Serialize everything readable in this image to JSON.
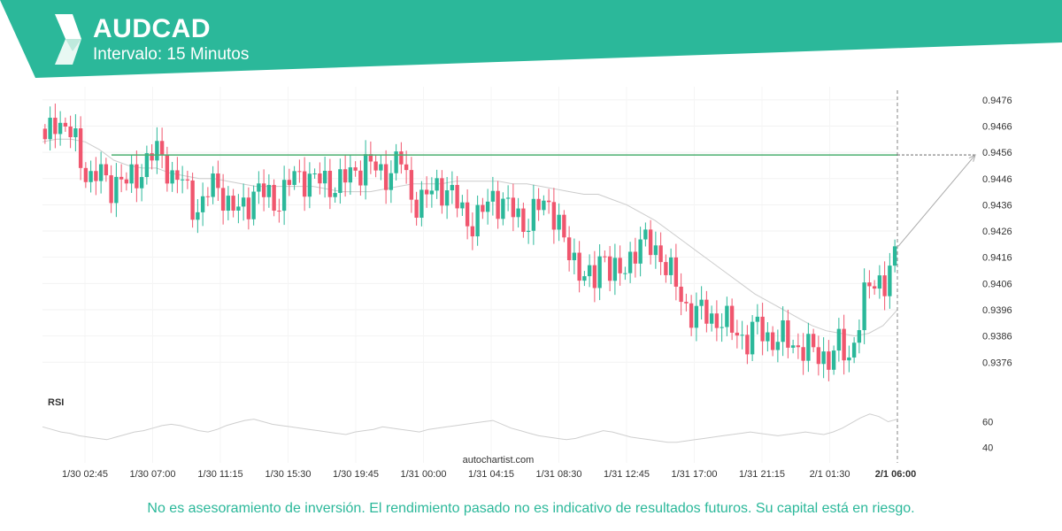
{
  "header": {
    "symbol": "AUDCAD",
    "interval": "Intervalo: 15 Minutos",
    "brand_color": "#2bb89a"
  },
  "indicator_label": "RSI",
  "watermark": "autochartist.com",
  "disclaimer": "No es asesoramiento de inversión. El rendimiento pasado no es indicativo de resultados futuros. Su capital está en riesgo.",
  "colors": {
    "up": "#2bb89a",
    "down": "#f0566e",
    "ma": "#cccccc",
    "level": "#4caf70"
  },
  "chart_data": {
    "type": "candlestick",
    "symbol": "AUDCAD",
    "price_ylim": [
      0.9369,
      0.9481
    ],
    "price_ticks": [
      "0.9476",
      "0.9466",
      "0.9456",
      "0.9446",
      "0.9436",
      "0.9426",
      "0.9416",
      "0.9406",
      "0.9396",
      "0.9386",
      "0.9376"
    ],
    "x_ticks": [
      "1/30 02:45",
      "1/30 07:00",
      "1/30 11:15",
      "1/30 15:30",
      "1/30 19:45",
      "1/31 00:00",
      "1/31 04:15",
      "1/31 08:30",
      "1/31 12:45",
      "1/31 17:00",
      "1/31 21:15",
      "2/1 01:30"
    ],
    "current_time_label": "2/1 06:00",
    "resistance_level": 0.9455,
    "forecast_target": 0.9455,
    "rsi_ylim": [
      30,
      70
    ],
    "rsi_ticks": [
      "60",
      "40"
    ],
    "close_path": [
      0.9458,
      0.947,
      0.9466,
      0.9462,
      0.9452,
      0.9446,
      0.9448,
      0.9443,
      0.9446,
      0.9444,
      0.9447,
      0.9452,
      0.9456,
      0.9454,
      0.9446,
      0.9445,
      0.9437,
      0.9434,
      0.9442,
      0.9444,
      0.9436,
      0.9433,
      0.9436,
      0.9442,
      0.944,
      0.9437,
      0.944,
      0.9446,
      0.9447,
      0.9446,
      0.9445,
      0.9444,
      0.9444,
      0.9446,
      0.9449,
      0.9452,
      0.945,
      0.9447,
      0.945,
      0.9453,
      0.944,
      0.9436,
      0.944,
      0.9444,
      0.9441,
      0.9437,
      0.9432,
      0.9428,
      0.9434,
      0.944,
      0.9436,
      0.9434,
      0.9431,
      0.9429,
      0.9435,
      0.9438,
      0.9431,
      0.9418,
      0.9415,
      0.941,
      0.9404,
      0.942,
      0.9411,
      0.9408,
      0.9416,
      0.9422,
      0.942,
      0.9419,
      0.9413,
      0.9405,
      0.9398,
      0.9394,
      0.9395,
      0.9393,
      0.9392,
      0.9389,
      0.9387,
      0.9384,
      0.939,
      0.9386,
      0.9384,
      0.9385,
      0.9383,
      0.9381,
      0.938,
      0.9379,
      0.9377,
      0.9383,
      0.9378,
      0.939,
      0.9404,
      0.9409,
      0.9405,
      0.9415
    ],
    "ma_path": [
      0.946,
      0.9461,
      0.9461,
      0.946,
      0.9457,
      0.9453,
      0.9451,
      0.945,
      0.945,
      0.9448,
      0.9447,
      0.9446,
      0.9446,
      0.9445,
      0.9444,
      0.9443,
      0.9443,
      0.9443,
      0.9443,
      0.9443,
      0.9442,
      0.9441,
      0.9441,
      0.9441,
      0.9442,
      0.9443,
      0.9444,
      0.9444,
      0.9444,
      0.9445,
      0.9445,
      0.9445,
      0.9445,
      0.9444,
      0.9444,
      0.9443,
      0.9442,
      0.9441,
      0.944,
      0.944,
      0.9438,
      0.9436,
      0.9433,
      0.943,
      0.9426,
      0.9422,
      0.9418,
      0.9414,
      0.941,
      0.9406,
      0.9402,
      0.9399,
      0.9396,
      0.9393,
      0.939,
      0.9388,
      0.9387,
      0.9386,
      0.9387,
      0.939,
      0.9396
    ],
    "rsi_path": [
      56,
      54,
      52,
      51,
      49,
      48,
      47,
      46,
      48,
      50,
      52,
      53,
      55,
      57,
      58,
      57,
      55,
      53,
      52,
      54,
      57,
      59,
      61,
      62,
      60,
      58,
      57,
      56,
      55,
      54,
      53,
      52,
      51,
      50,
      52,
      53,
      54,
      56,
      55,
      54,
      53,
      52,
      54,
      55,
      56,
      57,
      58,
      59,
      60,
      61,
      58,
      55,
      53,
      51,
      49,
      48,
      47,
      46,
      47,
      49,
      51,
      53,
      52,
      50,
      48,
      47,
      46,
      45,
      44,
      44,
      45,
      46,
      47,
      48,
      49,
      50,
      51,
      52,
      51,
      50,
      49,
      50,
      51,
      52,
      51,
      50,
      52,
      55,
      59,
      63,
      66,
      64,
      60,
      62
    ]
  }
}
